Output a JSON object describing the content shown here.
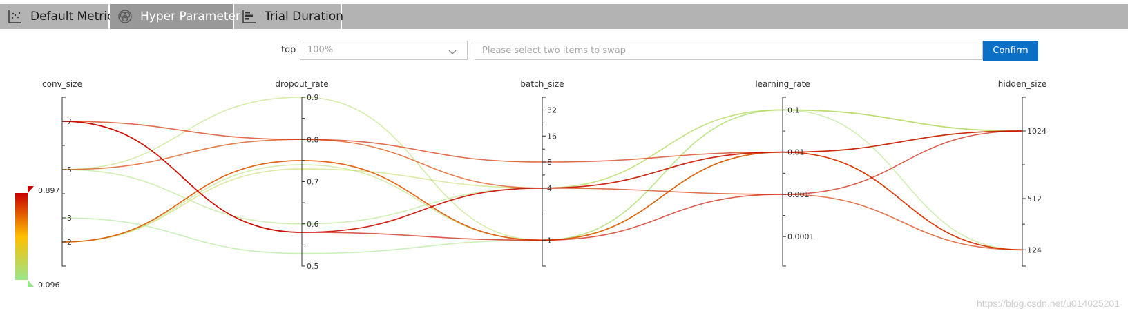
{
  "tabs": [
    {
      "label": "Default Metric",
      "icon": "scatter-icon",
      "active": false
    },
    {
      "label": "Hyper Parameter",
      "icon": "circles-icon",
      "active": true
    },
    {
      "label": "Trial Duration",
      "icon": "bar-chart-icon",
      "active": false
    }
  ],
  "controls": {
    "top_label": "top",
    "top_value": "100%",
    "swap_placeholder": "Please select two items to swap",
    "confirm_label": "Confirm"
  },
  "watermark": "https://blog.csdn.net/u014025201",
  "colors": {
    "high": "#c80000",
    "mid": "#ffbf00",
    "low": "#99e68a",
    "confirm": "#0b6fc6"
  },
  "chart_data": {
    "type": "parallel_coordinates",
    "axes": [
      {
        "name": "conv_size",
        "scale": "linear",
        "range": [
          1,
          8
        ],
        "ticks": [
          2,
          3,
          5,
          7
        ],
        "tick_labels": [
          "2",
          "3",
          "5",
          "7"
        ]
      },
      {
        "name": "dropout_rate",
        "scale": "linear",
        "range": [
          0.5,
          0.9
        ],
        "ticks": [
          0.5,
          0.6,
          0.7,
          0.8,
          0.9
        ],
        "tick_labels": [
          "0.5",
          "0.6",
          "0.7",
          "0.8",
          "0.9"
        ]
      },
      {
        "name": "batch_size",
        "scale": "log2",
        "range": [
          0.5,
          45
        ],
        "ticks": [
          1,
          4,
          8,
          16,
          32
        ],
        "tick_labels": [
          "1",
          "4",
          "8",
          "16",
          "32"
        ]
      },
      {
        "name": "learning_rate",
        "scale": "log10",
        "range": [
          2e-05,
          0.2
        ],
        "ticks": [
          0.0001,
          0.001,
          0.01,
          0.1
        ],
        "tick_labels": [
          "0.0001",
          "0.001",
          "0.01",
          "0.1"
        ]
      },
      {
        "name": "hidden_size",
        "scale": "linear",
        "range": [
          0,
          1280
        ],
        "ticks": [
          124,
          512,
          1024
        ],
        "tick_labels": [
          "124",
          "512",
          "1024"
        ]
      }
    ],
    "color_scale": {
      "min": 0.096,
      "max": 0.897,
      "min_label": "0.096",
      "max_label": "0.897"
    },
    "trials": [
      {
        "values": [
          7,
          0.8,
          8,
          0.01,
          124
        ],
        "metric": 0.8
      },
      {
        "values": [
          5,
          0.8,
          4,
          0.01,
          124
        ],
        "metric": 0.75
      },
      {
        "values": [
          7,
          0.58,
          4,
          0.01,
          1024
        ],
        "metric": 0.897
      },
      {
        "values": [
          7,
          0.58,
          4,
          0.001,
          124
        ],
        "metric": 0.78
      },
      {
        "values": [
          2,
          0.75,
          1,
          0.01,
          1024
        ],
        "metric": 0.7
      },
      {
        "values": [
          7,
          0.58,
          1,
          0.001,
          1024
        ],
        "metric": 0.85
      },
      {
        "values": [
          2,
          0.75,
          1,
          0.01,
          124
        ],
        "metric": 0.72
      },
      {
        "values": [
          5,
          0.9,
          1,
          0.1,
          1024
        ],
        "metric": 0.2
      },
      {
        "values": [
          5,
          0.6,
          4,
          0.1,
          124
        ],
        "metric": 0.15
      },
      {
        "values": [
          2,
          0.73,
          4,
          0.1,
          1024
        ],
        "metric": 0.25
      },
      {
        "values": [
          2,
          0.74,
          1,
          0.01,
          1024
        ],
        "metric": 0.18
      },
      {
        "values": [
          3,
          0.53,
          1,
          0.1,
          1024
        ],
        "metric": 0.12
      }
    ]
  }
}
